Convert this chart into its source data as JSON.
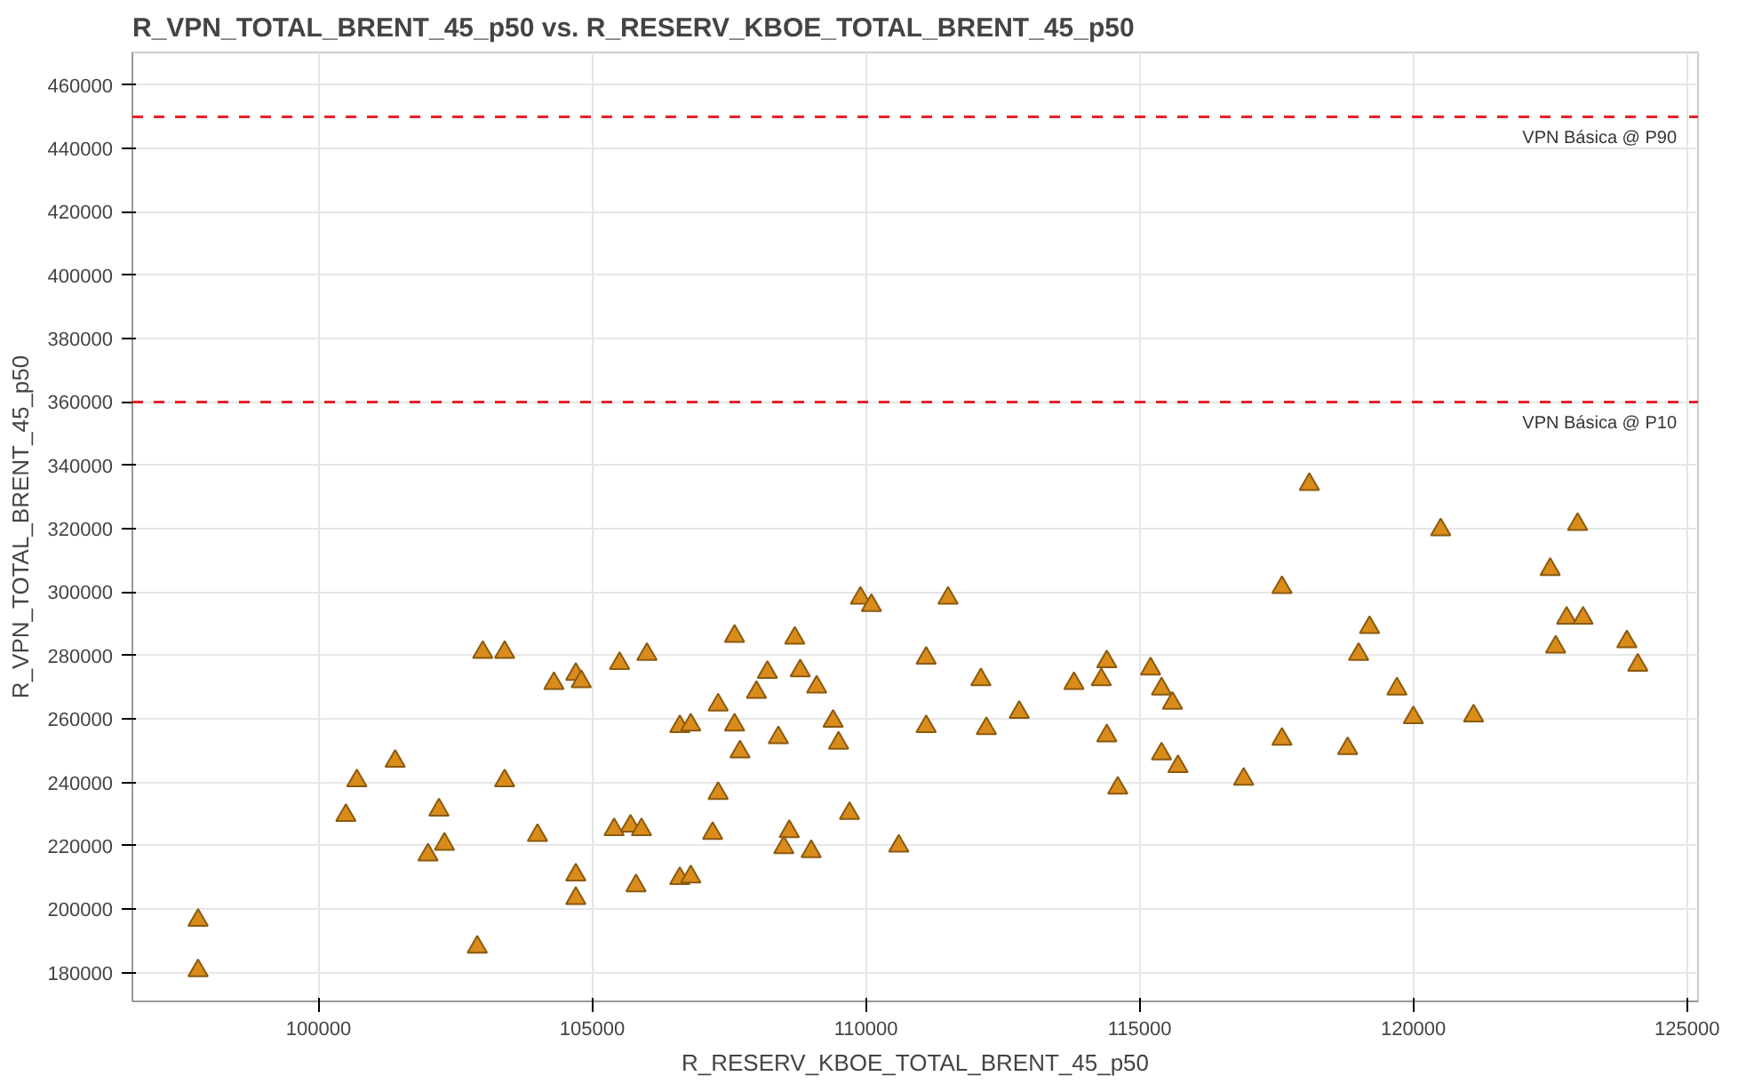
{
  "chart_data": {
    "type": "scatter",
    "title": "R_VPN_TOTAL_BRENT_45_p50 vs. R_RESERV_KBOE_TOTAL_BRENT_45_p50",
    "xlabel": "R_RESERV_KBOE_TOTAL_BRENT_45_p50",
    "ylabel": "R_VPN_TOTAL_BRENT_45_p50",
    "xlim": [
      96600,
      125200
    ],
    "ylim": [
      170900,
      470300
    ],
    "xticks": [
      100000,
      105000,
      110000,
      115000,
      120000,
      125000
    ],
    "yticks": [
      180000,
      200000,
      220000,
      240000,
      260000,
      280000,
      300000,
      320000,
      340000,
      360000,
      380000,
      400000,
      420000,
      440000,
      460000
    ],
    "grid": true,
    "marker": "triangle",
    "ref_lines": [
      {
        "axis": "y",
        "value": 450000,
        "label": "VPN Básica @ P90",
        "color": "#e8202a",
        "line_style": "dashed"
      },
      {
        "axis": "y",
        "value": 360000,
        "label": "VPN Básica @ P10",
        "color": "#e8202a",
        "line_style": "dashed"
      }
    ],
    "series": [
      {
        "color": "#d98c1a",
        "x": [
          97800,
          97800,
          103000,
          103400,
          104300,
          104700,
          104800,
          105500,
          106000,
          101400,
          100700,
          100500,
          102200,
          103400,
          102000,
          102300,
          104000,
          104700,
          104700,
          105800,
          105400,
          105700,
          105900,
          102900,
          106600,
          106600,
          109900,
          110100,
          111500,
          107600,
          108700,
          108200,
          108800,
          108000,
          109100,
          107300,
          106800,
          107600,
          108400,
          109400,
          107700,
          109500,
          107300,
          109700,
          107200,
          108600,
          108500,
          109000,
          110600,
          106800,
          111100,
          112100,
          111100,
          112200,
          112800,
          113800,
          114300,
          114400,
          115200,
          115400,
          115600,
          114400,
          115400,
          115700,
          114600,
          118100,
          120500,
          123000,
          117600,
          122500,
          119200,
          122800,
          123100,
          119000,
          122600,
          123900,
          124100,
          119700,
          120000,
          121100,
          117600,
          118800,
          116900
        ],
        "values": [
          196500,
          180600,
          281000,
          281000,
          271200,
          274100,
          271800,
          277500,
          280400,
          246700,
          240500,
          229600,
          231300,
          240500,
          217100,
          220500,
          223300,
          210800,
          203400,
          207400,
          225100,
          226200,
          225100,
          188000,
          257600,
          209700,
          298100,
          295800,
          298100,
          286100,
          285500,
          274700,
          275200,
          268400,
          270100,
          264400,
          258100,
          258100,
          254100,
          259300,
          249600,
          252400,
          236500,
          230200,
          223900,
          224500,
          219400,
          218200,
          219900,
          210200,
          279200,
          272400,
          257600,
          257000,
          262100,
          271200,
          272400,
          278100,
          275800,
          269500,
          265000,
          254700,
          249000,
          245000,
          238200,
          334000,
          319700,
          321400,
          301500,
          307200,
          288900,
          291800,
          291800,
          280400,
          282700,
          284400,
          277000,
          269500,
          260400,
          261000,
          253600,
          250700,
          241000
        ]
      }
    ]
  }
}
